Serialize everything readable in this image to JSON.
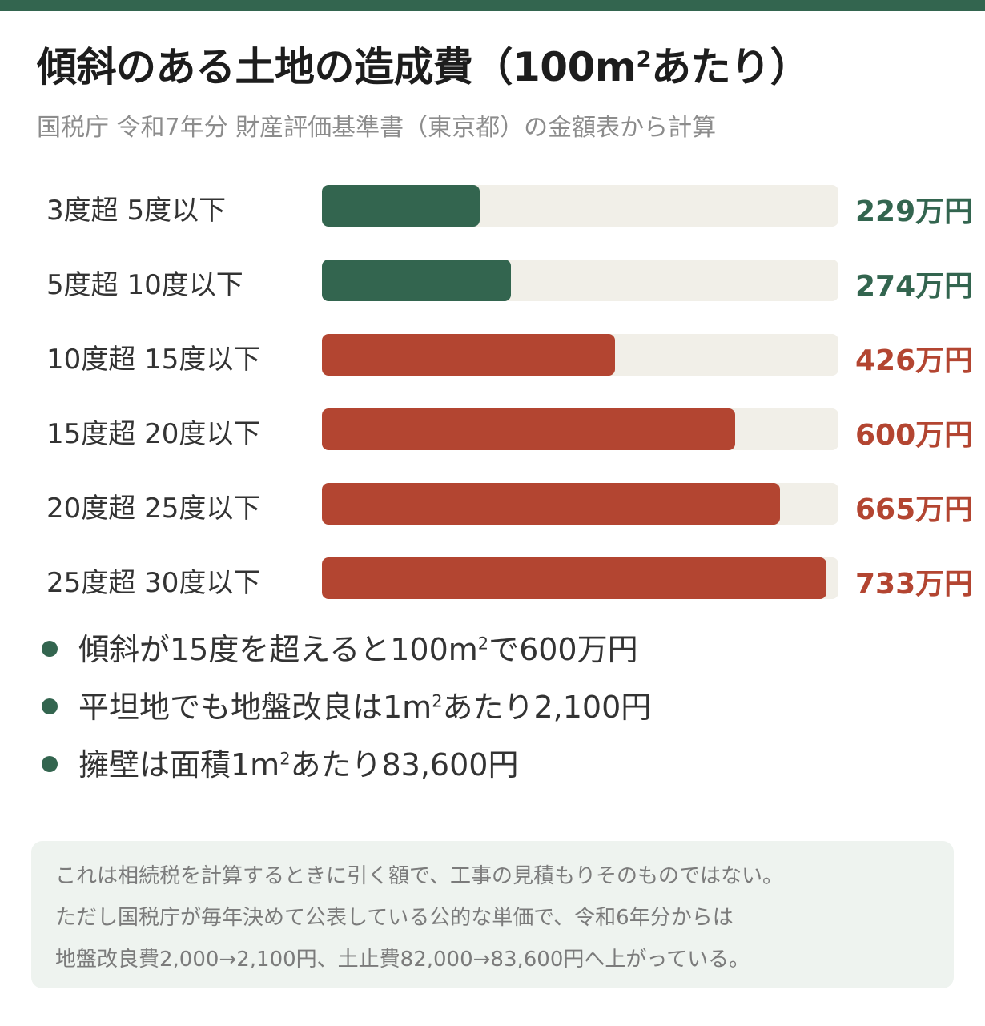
{
  "header": {
    "title_main": "傾斜のある土地の造成費（100m",
    "title_sup": "2",
    "title_end": "あたり）",
    "subtitle": "国税庁 令和7年分 財産評価基準書（東京都）の金額表から計算"
  },
  "colors": {
    "top_bar": "#33654f",
    "green": "#33654f",
    "red": "#b34531",
    "track": "#f1efe8",
    "note_bg": "#eef3ef"
  },
  "chart_data": {
    "type": "bar",
    "orientation": "horizontal",
    "unit": "万円",
    "xlim": [
      0,
      750
    ],
    "categories": [
      "3度超 5度以下",
      "5度超 10度以下",
      "10度超 15度以下",
      "15度超 20度以下",
      "20度超 25度以下",
      "25度超 30度以下"
    ],
    "values": [
      229,
      274,
      426,
      600,
      665,
      733
    ],
    "value_labels": [
      "229万円",
      "274万円",
      "426万円",
      "600万円",
      "665万円",
      "733万円"
    ],
    "bar_colors": [
      "#33654f",
      "#33654f",
      "#b34531",
      "#b34531",
      "#b34531",
      "#b34531"
    ]
  },
  "bullets": [
    {
      "before": "傾斜が15度を超えると100m",
      "sup": "2",
      "after": "で600万円"
    },
    {
      "before": "平坦地でも地盤改良は1m",
      "sup": "2",
      "after": "あたり2,100円"
    },
    {
      "before": "擁壁は面積1m",
      "sup": "2",
      "after": "あたり83,600円"
    }
  ],
  "note": {
    "lines": [
      "これは相続税を計算するときに引く額で、工事の見積もりそのものではない。",
      "ただし国税庁が毎年決めて公表している公的な単価で、令和6年分からは",
      "地盤改良費2,000→2,100円、土止費82,000→83,600円へ上がっている。"
    ]
  }
}
